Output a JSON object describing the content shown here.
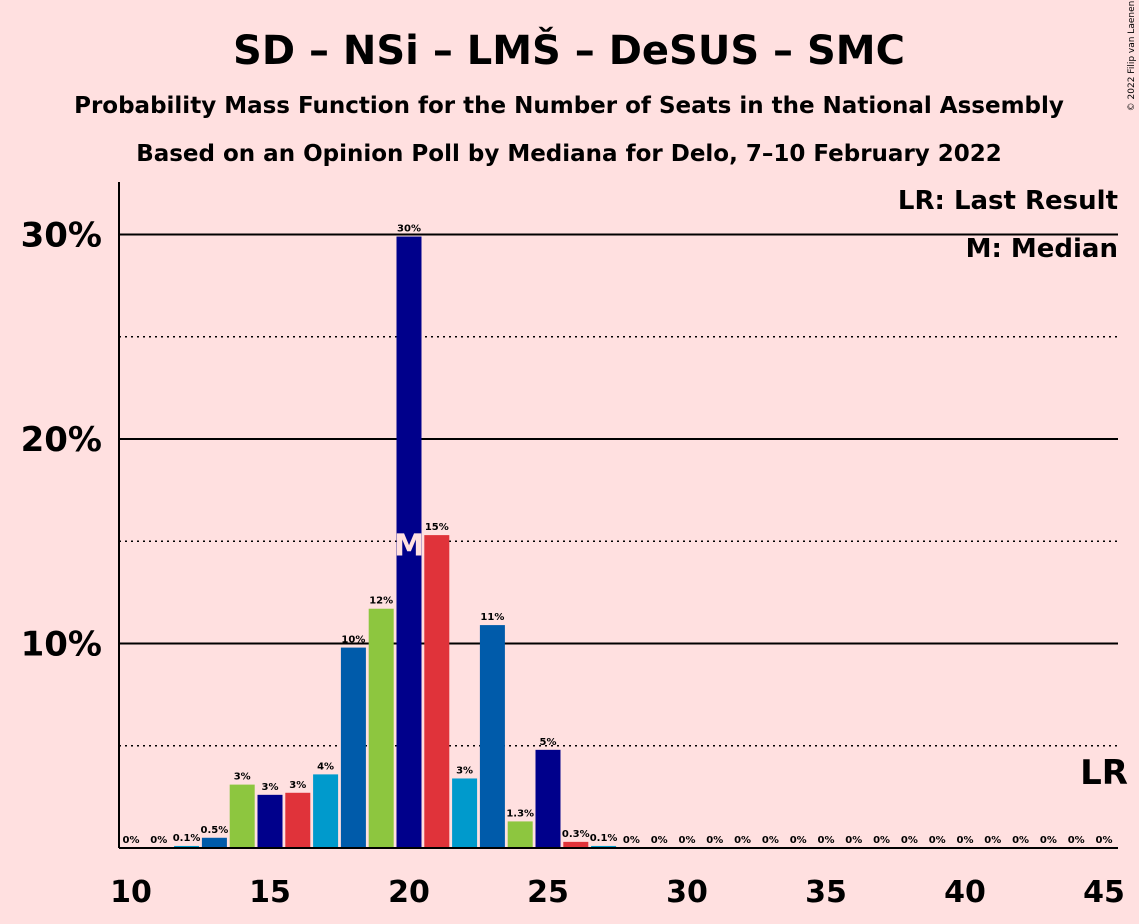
{
  "title": "SD – NSi – LMŠ – DeSUS – SMC",
  "subtitle1": "Probability Mass Function for the Number of Seats in the National Assembly",
  "subtitle2": "Based on an Opinion Poll by Mediana for Delo, 7–10 February 2022",
  "copyright": "© 2022 Filip van Laenen",
  "legend": {
    "lr": "LR: Last Result",
    "m": "M: Median"
  },
  "lr_marker": {
    "label": "LR",
    "seats": 45
  },
  "median_marker": {
    "label": "M",
    "seats": 20
  },
  "colors": {
    "background": "#FFE0E0",
    "palette": [
      "#00008B",
      "#E0333A",
      "#009ACC",
      "#005BAA",
      "#8DC63F"
    ]
  },
  "chart_data": {
    "type": "bar",
    "x": [
      10,
      11,
      12,
      13,
      14,
      15,
      16,
      17,
      18,
      19,
      20,
      21,
      22,
      23,
      24,
      25,
      26,
      27,
      28,
      29,
      30,
      31,
      32,
      33,
      34,
      35,
      36,
      37,
      38,
      39,
      40,
      41,
      42,
      43,
      44,
      45
    ],
    "values": [
      0,
      0,
      0.1,
      0.5,
      3.1,
      2.6,
      2.7,
      3.6,
      9.8,
      11.7,
      29.9,
      15.3,
      3.4,
      10.9,
      1.3,
      4.8,
      0.3,
      0.1,
      0,
      0,
      0,
      0,
      0,
      0,
      0,
      0,
      0,
      0,
      0,
      0,
      0,
      0,
      0,
      0,
      0,
      0
    ],
    "value_labels": [
      "0%",
      "0%",
      "0.1%",
      "0.5%",
      "3%",
      "3%",
      "3%",
      "4%",
      "10%",
      "12%",
      "30%",
      "15%",
      "3%",
      "11%",
      "1.3%",
      "5%",
      "0.3%",
      "0.1%",
      "0%",
      "0%",
      "0%",
      "0%",
      "0%",
      "0%",
      "0%",
      "0%",
      "0%",
      "0%",
      "0%",
      "0%",
      "0%",
      "0%",
      "0%",
      "0%",
      "0%",
      "0%"
    ],
    "color_index": [
      0,
      1,
      2,
      3,
      4,
      0,
      1,
      2,
      3,
      4,
      0,
      1,
      2,
      3,
      4,
      0,
      1,
      2,
      3,
      4,
      0,
      1,
      2,
      3,
      4,
      0,
      1,
      2,
      3,
      4,
      0,
      1,
      2,
      3,
      4,
      0
    ],
    "xticks": [
      "10",
      "15",
      "20",
      "25",
      "30",
      "35",
      "40",
      "45"
    ],
    "yticks": [
      "10%",
      "20%",
      "30%"
    ],
    "ylim": [
      0,
      32.6
    ],
    "xlabel": "",
    "ylabel": "",
    "grid": "solid at 10%, 20%, 30%; dotted at 5%, 15%, 25%"
  }
}
